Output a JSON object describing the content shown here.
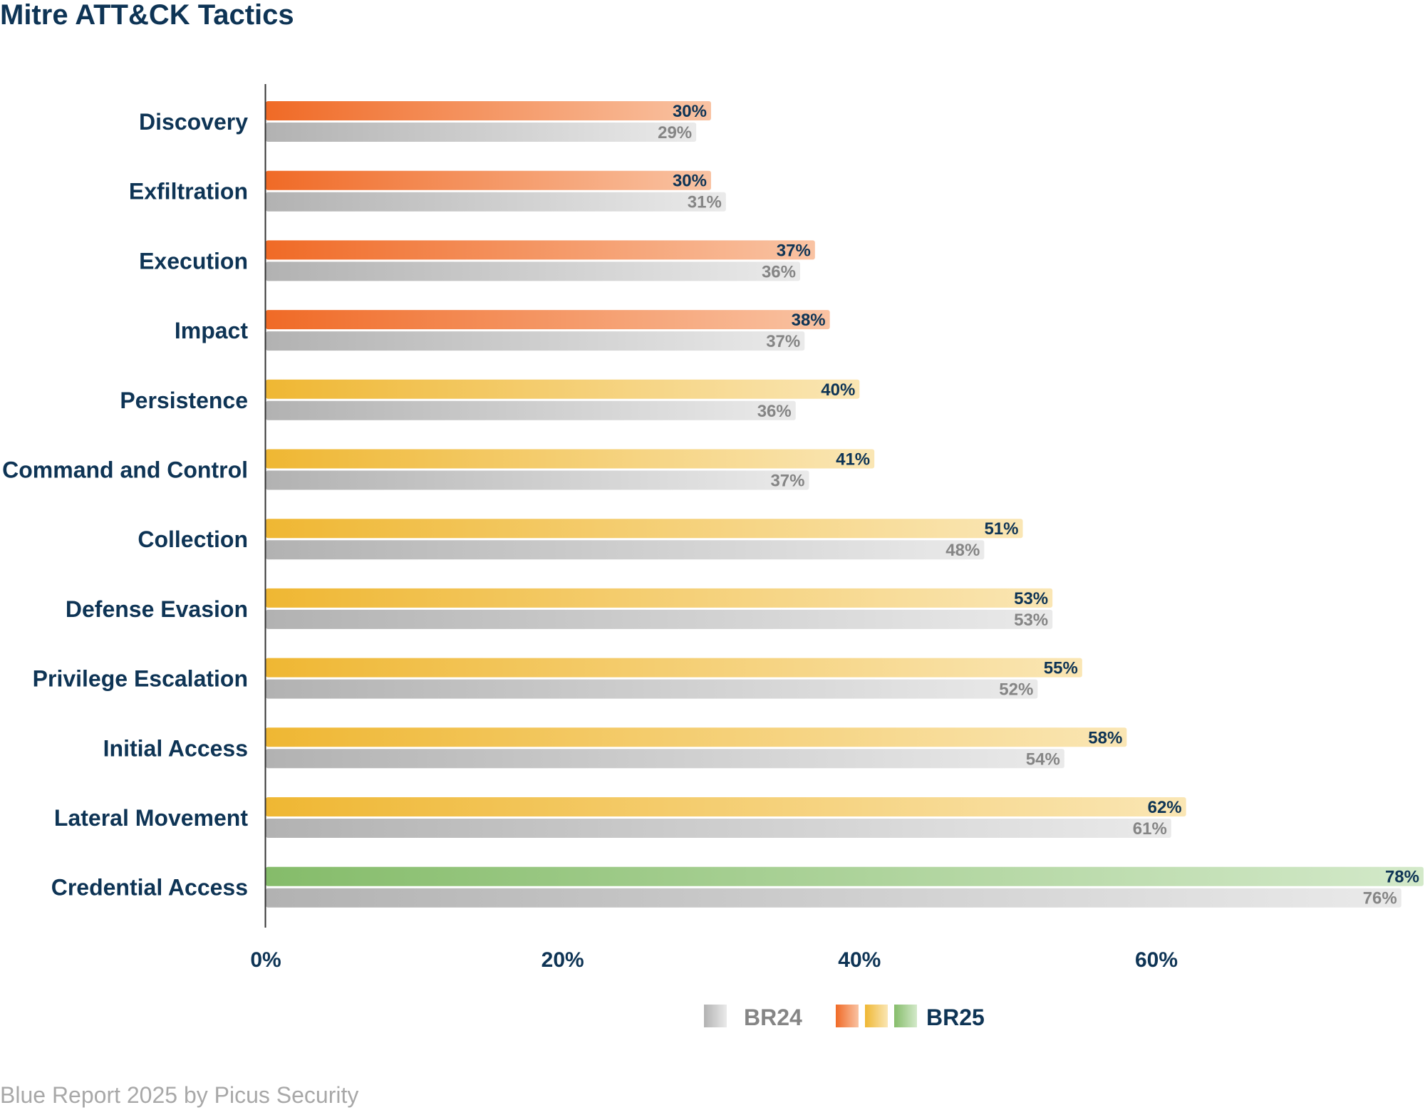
{
  "chart_data": {
    "type": "bar",
    "orientation": "horizontal",
    "title": "Mitre ATT&CK Tactics",
    "categories": [
      "Discovery",
      "Exfiltration",
      "Execution",
      "Impact",
      "Persistence",
      "Command and Control",
      "Collection",
      "Defense Evasion",
      "Privilege Escalation",
      "Initial Access",
      "Lateral Movement",
      "Credential Access"
    ],
    "series": [
      {
        "name": "BR25",
        "values": [
          30,
          30,
          37,
          38,
          40,
          41,
          51,
          53,
          55,
          58,
          62,
          78
        ],
        "labels": [
          "30%",
          "30%",
          "37%",
          "38%",
          "40%",
          "41%",
          "51%",
          "53%",
          "55%",
          "58%",
          "62%",
          "78%"
        ]
      },
      {
        "name": "BR24",
        "values": [
          29,
          31,
          36,
          37,
          36,
          37,
          48,
          53,
          52,
          54,
          61,
          76
        ],
        "labels": [
          "29%",
          "31%",
          "36%",
          "37%",
          "36%",
          "37%",
          "48%",
          "53%",
          "52%",
          "54%",
          "61%",
          "76%"
        ]
      }
    ],
    "bar_visual_ends": {
      "BR25": [
        30,
        30,
        37,
        38,
        40,
        41,
        51,
        53,
        55,
        58,
        62,
        78
      ],
      "BR24": [
        29,
        31,
        36,
        36.3,
        35.7,
        36.6,
        48.4,
        53,
        52,
        53.8,
        61,
        76.5
      ]
    },
    "color_groups": {
      "BR25": [
        "orange",
        "orange",
        "orange",
        "orange",
        "yellow",
        "yellow",
        "yellow",
        "yellow",
        "yellow",
        "yellow",
        "yellow",
        "green"
      ]
    },
    "xticks": [
      0,
      20,
      40,
      60
    ],
    "xtick_labels": [
      "0%",
      "20%",
      "40%",
      "60%"
    ],
    "xlim": [
      0,
      78
    ],
    "xlabel": "",
    "ylabel": "",
    "legend": {
      "placement": "bottom-center",
      "entries": [
        "BR24",
        "BR25"
      ]
    },
    "grid": false
  },
  "colors": {
    "title": "#0e3455",
    "orange_start": "#f06a26",
    "orange_end": "#f9c3a3",
    "yellow_start": "#efb733",
    "yellow_end": "#fae6b4",
    "green_start": "#85bc6a",
    "green_end": "#d3e9c9",
    "gray_start": "#b2b2b2",
    "gray_end": "#eaeaea",
    "axis": "#333333"
  },
  "footer": "Blue Report 2025 by Picus Security"
}
